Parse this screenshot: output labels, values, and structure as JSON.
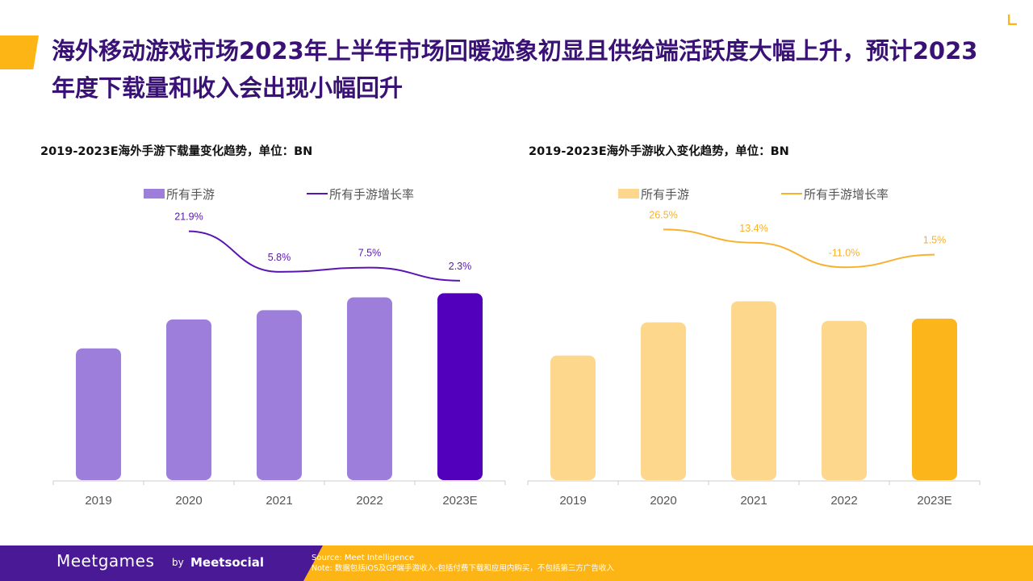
{
  "page": {
    "title": "海外移动游戏市场2023年上半年市场回暖迹象初显且供给端活跃度大幅上升，预计2023年度下载量和收入会出现小幅回升"
  },
  "colors": {
    "accent": "#FDB515",
    "brand_purple": "#4A1A96",
    "title_purple": "#3A1275"
  },
  "chart_data": [
    {
      "type": "bar",
      "title": "2019-2023E海外手游下载量变化趋势，单位：BN",
      "categories": [
        "2019",
        "2020",
        "2021",
        "2022",
        "2023E"
      ],
      "series": [
        {
          "name": "所有手游",
          "type": "bar",
          "values": [
            38.2,
            46.6,
            49.3,
            53.0,
            54.2
          ],
          "colors": [
            "#9D7EDB",
            "#9D7EDB",
            "#9D7EDB",
            "#9D7EDB",
            "#5300BD"
          ]
        },
        {
          "name": "所有手游增长率",
          "type": "line",
          "values": [
            null,
            21.9,
            5.8,
            7.5,
            2.3
          ],
          "labels": [
            "",
            "21.9%",
            "5.8%",
            "7.5%",
            "2.3%"
          ],
          "color": "#5A14B4"
        }
      ],
      "ylim": [
        0,
        55
      ],
      "line_ylim": [
        0,
        32
      ],
      "legend": "top"
    },
    {
      "type": "bar",
      "title": "2019-2023E海外手游收入变化趋势，单位：BN",
      "categories": [
        "2019",
        "2020",
        "2021",
        "2022",
        "2023E"
      ],
      "series": [
        {
          "name": "所有手游",
          "type": "bar",
          "values": [
            39.4,
            49.9,
            56.6,
            50.4,
            51.1
          ],
          "colors": [
            "#FDD88C",
            "#FDD88C",
            "#FDD88C",
            "#FDD88C",
            "#FDB51C"
          ]
        },
        {
          "name": "所有手游增长率",
          "type": "line",
          "values": [
            null,
            26.5,
            13.4,
            -11.0,
            1.5
          ],
          "labels": [
            "",
            "26.5%",
            "13.4%",
            "-11.0%",
            "1.5%"
          ],
          "color": "#F7B12F"
        }
      ],
      "ylim": [
        0,
        60
      ],
      "line_ylim": [
        -30,
        50
      ],
      "legend": "top"
    }
  ],
  "footer": {
    "brand": "Meetgames",
    "by": "by",
    "partner": "Meetsocial",
    "source": "Source: Meet Intelligence",
    "note": "Note: 数据包括iOS及GP端手游收入-包括付费下载和应用内购买，不包括第三方广告收入"
  }
}
